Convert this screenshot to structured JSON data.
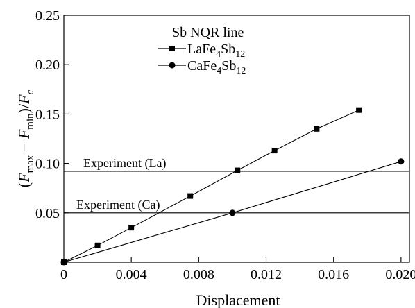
{
  "chart_data": {
    "type": "line",
    "title": "",
    "xlabel": "Displacement",
    "ylabel_parts": {
      "open": "(",
      "f1": "F",
      "sub1": "max",
      "minus": " − ",
      "f2": "F",
      "sub2": "min",
      "close": ")/",
      "f3": "F",
      "sub3": "c"
    },
    "xlim": [
      0,
      0.0205
    ],
    "ylim": [
      0,
      0.25
    ],
    "x_ticks": [
      {
        "value": 0,
        "label": "0"
      },
      {
        "value": 0.004,
        "label": "0.004"
      },
      {
        "value": 0.008,
        "label": "0.008"
      },
      {
        "value": 0.012,
        "label": "0.012"
      },
      {
        "value": 0.016,
        "label": "0.016"
      },
      {
        "value": 0.02,
        "label": "0.020"
      }
    ],
    "y_ticks": [
      {
        "value": 0.05,
        "label": "0.05"
      },
      {
        "value": 0.1,
        "label": "0.10"
      },
      {
        "value": 0.15,
        "label": "0.15"
      },
      {
        "value": 0.2,
        "label": "0.20"
      },
      {
        "value": 0.25,
        "label": "0.25"
      }
    ],
    "grid": false,
    "legend": {
      "title": "Sb NQR line",
      "placement": "top-center"
    },
    "series": [
      {
        "name_parts": {
          "base": "LaFe",
          "sub1": "4",
          "mid": "Sb",
          "sub2": "12"
        },
        "marker": "square",
        "x": [
          0,
          0.002,
          0.004,
          0.0075,
          0.0103,
          0.0125,
          0.015,
          0.0175
        ],
        "y": [
          0,
          0.017,
          0.035,
          0.067,
          0.093,
          0.113,
          0.135,
          0.154
        ]
      },
      {
        "name_parts": {
          "base": "CaFe",
          "sub1": "4",
          "mid": "Sb",
          "sub2": "12"
        },
        "marker": "circle",
        "x": [
          0,
          0.01,
          0.02
        ],
        "y": [
          0,
          0.05,
          0.102
        ]
      }
    ],
    "reference_lines": [
      {
        "label": "Experiment (La)",
        "y": 0.092
      },
      {
        "label": "Experiment (Ca)",
        "y": 0.05
      }
    ]
  }
}
